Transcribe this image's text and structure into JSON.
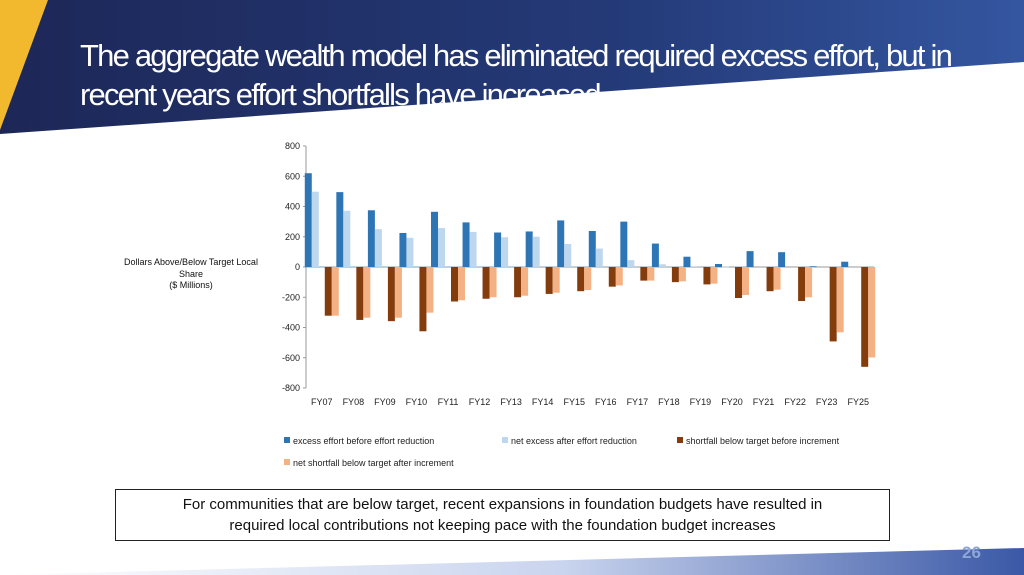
{
  "slide": {
    "title": "The aggregate wealth model has eliminated required excess effort, but in recent years effort shortfalls have increased",
    "note_line1": "For communities that are below target, recent expansions in foundation budgets have resulted in",
    "note_line2": "required local contributions not keeping pace with the foundation budget increases",
    "page_number": "26"
  },
  "colors": {
    "banner_dark": "#1f2b5e",
    "banner_mid": "#2d4a8e",
    "accent_gold": "#f2b82e"
  },
  "chart_data": {
    "type": "bar",
    "ylabel_lines": [
      "Dollars Above/Below Target Local",
      "Share",
      "($ Millions)"
    ],
    "ylim": [
      -800,
      800
    ],
    "yticks": [
      -800,
      -600,
      -400,
      -200,
      0,
      200,
      400,
      600,
      800
    ],
    "categories": [
      "FY07",
      "FY08",
      "FY09",
      "FY10",
      "FY11",
      "FY12",
      "FY13",
      "FY14",
      "FY15",
      "FY16",
      "FY17",
      "FY18",
      "FY19",
      "FY20",
      "FY21",
      "FY22",
      "FY23",
      "FY25"
    ],
    "legend_position": "bottom",
    "grid": false,
    "series": [
      {
        "name": "excess effort before effort reduction",
        "color": "#2e75b6",
        "values": [
          620,
          495,
          375,
          225,
          365,
          295,
          228,
          235,
          308,
          238,
          300,
          155,
          68,
          20,
          105,
          98,
          5,
          35
        ]
      },
      {
        "name": "net excess after effort reduction",
        "color": "#bdd7ee",
        "values": [
          498,
          372,
          250,
          193,
          258,
          232,
          197,
          200,
          152,
          122,
          45,
          18,
          5,
          2,
          0,
          0,
          0,
          0
        ]
      },
      {
        "name": "shortfall below target before increment",
        "color": "#843c0c",
        "values": [
          -322,
          -350,
          -358,
          -425,
          -228,
          -210,
          -200,
          -178,
          -160,
          -130,
          -90,
          -100,
          -115,
          -205,
          -160,
          -225,
          -492,
          -660
        ]
      },
      {
        "name": "net shortfall below target after increment",
        "color": "#f4b183",
        "values": [
          -322,
          -335,
          -335,
          -302,
          -220,
          -200,
          -190,
          -170,
          -152,
          -122,
          -90,
          -95,
          -110,
          -185,
          -150,
          -200,
          -432,
          -598
        ]
      }
    ]
  }
}
